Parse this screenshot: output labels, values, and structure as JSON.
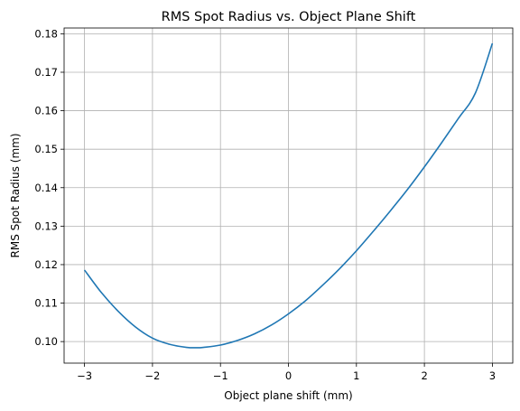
{
  "chart_data": {
    "type": "line",
    "title": "RMS Spot Radius vs. Object Plane Shift",
    "xlabel": "Object plane shift (mm)",
    "ylabel": "RMS Spot Radius (mm)",
    "xlim": [
      -3.3,
      3.3
    ],
    "ylim": [
      0.0944,
      0.1815
    ],
    "xticks": [
      -3,
      -2,
      -1,
      0,
      1,
      2,
      3
    ],
    "xtick_labels": [
      "−3",
      "−2",
      "−1",
      "0",
      "1",
      "2",
      "3"
    ],
    "yticks": [
      0.1,
      0.11,
      0.12,
      0.13,
      0.14,
      0.15,
      0.16,
      0.17,
      0.18
    ],
    "ytick_labels": [
      "0.10",
      "0.11",
      "0.12",
      "0.13",
      "0.14",
      "0.15",
      "0.16",
      "0.17",
      "0.18"
    ],
    "grid": true,
    "series": [
      {
        "color": "#1f77b4",
        "x": [
          -3.0,
          -2.75,
          -2.5,
          -2.25,
          -2.0,
          -1.75,
          -1.5,
          -1.35,
          -1.25,
          -1.0,
          -0.75,
          -0.5,
          -0.25,
          0.0,
          0.25,
          0.5,
          0.75,
          1.0,
          1.25,
          1.5,
          1.75,
          2.0,
          2.25,
          2.5,
          2.75,
          3.0
        ],
        "y": [
          0.1186,
          0.1127,
          0.1078,
          0.1038,
          0.1009,
          0.0993,
          0.0985,
          0.0984,
          0.0985,
          0.0991,
          0.1003,
          0.102,
          0.1043,
          0.1072,
          0.1106,
          0.1146,
          0.1189,
          0.1236,
          0.1287,
          0.134,
          0.1395,
          0.1454,
          0.1516,
          0.158,
          0.1646,
          0.1775
        ]
      }
    ]
  }
}
